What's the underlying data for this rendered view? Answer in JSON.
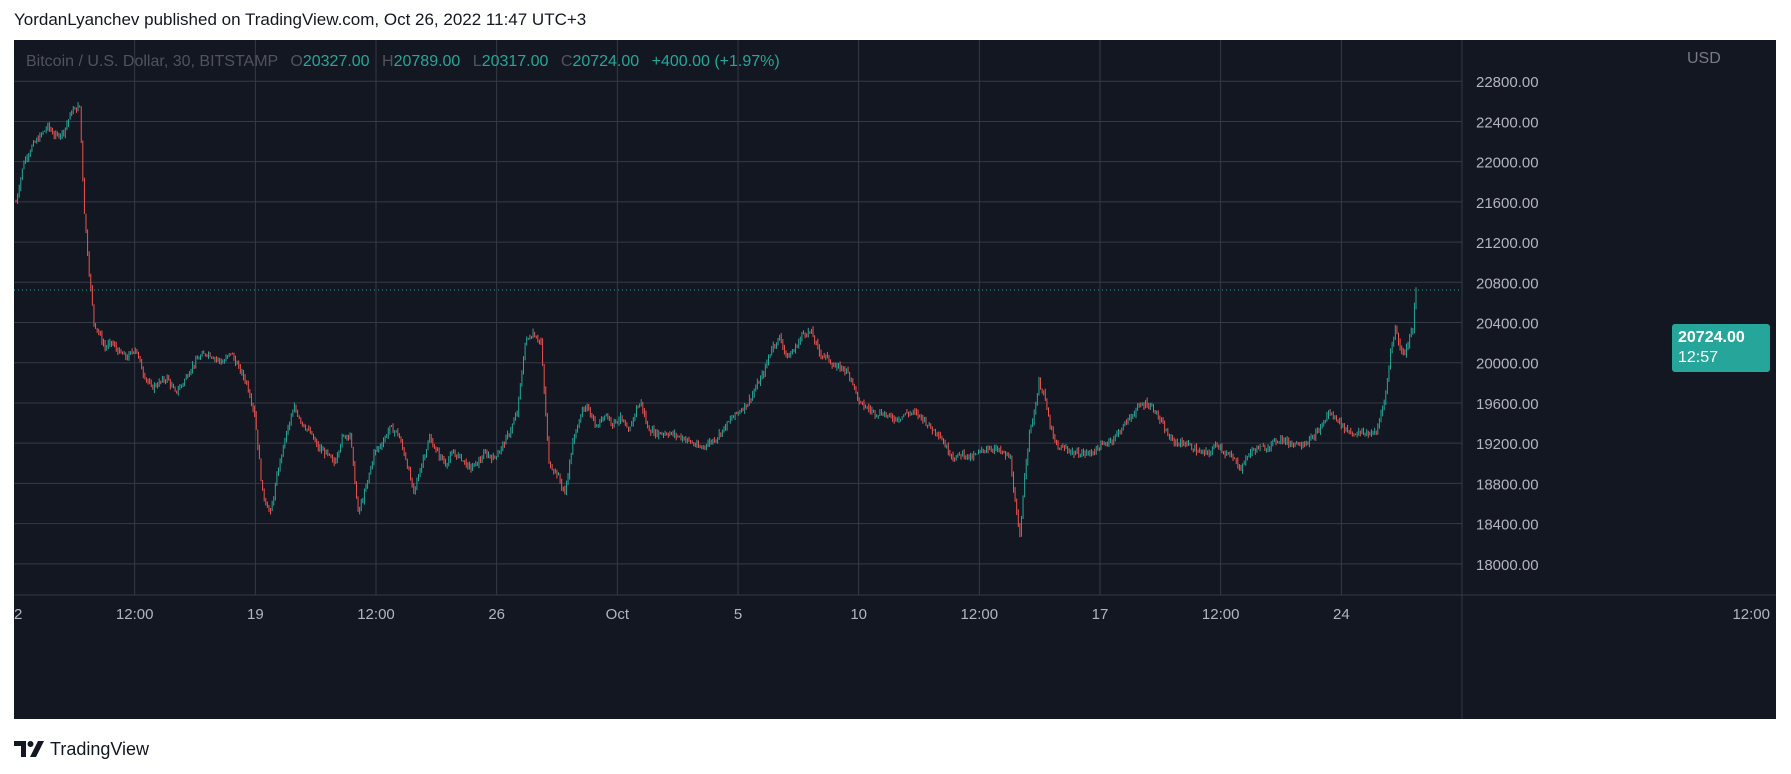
{
  "header": {
    "published_text": "YordanLyanchev published on TradingView.com, Oct 26, 2022 11:47 UTC+3"
  },
  "legend": {
    "symbol": "Bitcoin / U.S. Dollar, 30, BITSTAMP",
    "open_label": "O",
    "open": "20327.00",
    "high_label": "H",
    "high": "20789.00",
    "low_label": "L",
    "low": "20317.00",
    "close_label": "C",
    "close": "20724.00",
    "change": "+400.00 (+1.97%)"
  },
  "price_axis": {
    "currency": "USD",
    "last_price": "20724.00",
    "countdown": "12:57"
  },
  "footer": {
    "brand": "TradingView"
  },
  "colors": {
    "background": "#131722",
    "grid": "#363a45",
    "up": "#26a69a",
    "down": "#ef5350",
    "axis_text": "#b2b5be",
    "price_tag": "#26a69a"
  },
  "chart_data": {
    "type": "candlestick",
    "title": "Bitcoin / U.S. Dollar, 30, BITSTAMP",
    "xlabel": "",
    "ylabel": "USD",
    "x_tick_labels": [
      "2",
      "12:00",
      "19",
      "12:00",
      "26",
      "Oct",
      "5",
      "10",
      "12:00",
      "17",
      "12:00",
      "24",
      "12:00"
    ],
    "y_tick_labels": [
      "18000.00",
      "18400.00",
      "18800.00",
      "19200.00",
      "19600.00",
      "20000.00",
      "20400.00",
      "20800.00",
      "21200.00",
      "21600.00",
      "22000.00",
      "22400.00",
      "22800.00"
    ],
    "ylim": [
      17690,
      23210
    ],
    "grid": true,
    "last_price": 20724,
    "series": [
      {
        "name": "BTCUSD",
        "close_path": [
          [
            0,
            21600
          ],
          [
            5,
            22000
          ],
          [
            10,
            22150
          ],
          [
            15,
            22250
          ],
          [
            20,
            22350
          ],
          [
            25,
            22250
          ],
          [
            30,
            22300
          ],
          [
            35,
            22500
          ],
          [
            40,
            22550
          ],
          [
            43,
            21500
          ],
          [
            46,
            20900
          ],
          [
            49,
            20400
          ],
          [
            52,
            20300
          ],
          [
            56,
            20150
          ],
          [
            60,
            20200
          ],
          [
            65,
            20100
          ],
          [
            70,
            20050
          ],
          [
            75,
            20150
          ],
          [
            80,
            19900
          ],
          [
            85,
            19750
          ],
          [
            90,
            19800
          ],
          [
            95,
            19850
          ],
          [
            100,
            19700
          ],
          [
            105,
            19800
          ],
          [
            110,
            19950
          ],
          [
            115,
            20050
          ],
          [
            120,
            20100
          ],
          [
            125,
            20050
          ],
          [
            130,
            20000
          ],
          [
            135,
            20100
          ],
          [
            140,
            19950
          ],
          [
            145,
            19800
          ],
          [
            150,
            19500
          ],
          [
            155,
            18700
          ],
          [
            160,
            18500
          ],
          [
            165,
            18950
          ],
          [
            170,
            19300
          ],
          [
            175,
            19550
          ],
          [
            180,
            19400
          ],
          [
            185,
            19300
          ],
          [
            190,
            19150
          ],
          [
            195,
            19100
          ],
          [
            200,
            19000
          ],
          [
            205,
            19250
          ],
          [
            210,
            19300
          ],
          [
            215,
            18500
          ],
          [
            220,
            18750
          ],
          [
            225,
            19100
          ],
          [
            230,
            19200
          ],
          [
            235,
            19350
          ],
          [
            240,
            19300
          ],
          [
            245,
            19050
          ],
          [
            250,
            18700
          ],
          [
            255,
            19000
          ],
          [
            260,
            19250
          ],
          [
            265,
            19100
          ],
          [
            270,
            19000
          ],
          [
            275,
            19100
          ],
          [
            280,
            19050
          ],
          [
            285,
            18950
          ],
          [
            290,
            19000
          ],
          [
            295,
            19100
          ],
          [
            300,
            19050
          ],
          [
            305,
            19150
          ],
          [
            310,
            19300
          ],
          [
            315,
            19500
          ],
          [
            318,
            19900
          ],
          [
            320,
            20200
          ],
          [
            325,
            20300
          ],
          [
            330,
            20200
          ],
          [
            335,
            19000
          ],
          [
            340,
            18900
          ],
          [
            345,
            18700
          ],
          [
            350,
            19200
          ],
          [
            355,
            19500
          ],
          [
            360,
            19550
          ],
          [
            365,
            19350
          ],
          [
            370,
            19500
          ],
          [
            375,
            19400
          ],
          [
            380,
            19450
          ],
          [
            385,
            19300
          ],
          [
            390,
            19550
          ],
          [
            393,
            19600
          ],
          [
            397,
            19350
          ],
          [
            402,
            19300
          ],
          [
            410,
            19300
          ],
          [
            420,
            19250
          ],
          [
            430,
            19150
          ],
          [
            440,
            19250
          ],
          [
            450,
            19450
          ],
          [
            460,
            19600
          ],
          [
            465,
            19750
          ],
          [
            470,
            19900
          ],
          [
            475,
            20150
          ],
          [
            480,
            20250
          ],
          [
            485,
            20050
          ],
          [
            490,
            20150
          ],
          [
            495,
            20300
          ],
          [
            500,
            20300
          ],
          [
            505,
            20100
          ],
          [
            510,
            20050
          ],
          [
            515,
            19950
          ],
          [
            520,
            19950
          ],
          [
            525,
            19850
          ],
          [
            530,
            19600
          ],
          [
            535,
            19550
          ],
          [
            540,
            19500
          ],
          [
            545,
            19500
          ],
          [
            550,
            19450
          ],
          [
            555,
            19450
          ],
          [
            560,
            19500
          ],
          [
            565,
            19500
          ],
          [
            570,
            19450
          ],
          [
            575,
            19350
          ],
          [
            580,
            19300
          ],
          [
            585,
            19150
          ],
          [
            590,
            19050
          ],
          [
            595,
            19100
          ],
          [
            600,
            19050
          ],
          [
            605,
            19100
          ],
          [
            610,
            19150
          ],
          [
            615,
            19150
          ],
          [
            620,
            19100
          ],
          [
            625,
            19050
          ],
          [
            628,
            18600
          ],
          [
            631,
            18250
          ],
          [
            634,
            18900
          ],
          [
            637,
            19300
          ],
          [
            640,
            19500
          ],
          [
            643,
            19800
          ],
          [
            646,
            19700
          ],
          [
            649,
            19450
          ],
          [
            652,
            19250
          ],
          [
            655,
            19150
          ],
          [
            660,
            19150
          ],
          [
            665,
            19100
          ],
          [
            670,
            19100
          ],
          [
            675,
            19100
          ],
          [
            680,
            19150
          ],
          [
            685,
            19200
          ],
          [
            690,
            19250
          ],
          [
            695,
            19350
          ],
          [
            700,
            19450
          ],
          [
            705,
            19550
          ],
          [
            710,
            19600
          ],
          [
            715,
            19550
          ],
          [
            720,
            19400
          ],
          [
            725,
            19250
          ],
          [
            730,
            19200
          ],
          [
            735,
            19200
          ],
          [
            740,
            19150
          ],
          [
            745,
            19100
          ],
          [
            750,
            19100
          ],
          [
            755,
            19200
          ],
          [
            760,
            19100
          ],
          [
            765,
            19050
          ],
          [
            770,
            18950
          ],
          [
            775,
            19100
          ],
          [
            780,
            19150
          ],
          [
            785,
            19150
          ],
          [
            790,
            19200
          ],
          [
            795,
            19250
          ],
          [
            800,
            19200
          ],
          [
            805,
            19200
          ],
          [
            810,
            19200
          ],
          [
            815,
            19250
          ],
          [
            820,
            19350
          ],
          [
            825,
            19500
          ],
          [
            830,
            19450
          ],
          [
            835,
            19350
          ],
          [
            840,
            19300
          ],
          [
            845,
            19300
          ],
          [
            850,
            19300
          ],
          [
            855,
            19300
          ],
          [
            858,
            19500
          ],
          [
            861,
            19700
          ],
          [
            864,
            20100
          ],
          [
            867,
            20350
          ],
          [
            870,
            20150
          ],
          [
            873,
            20100
          ],
          [
            876,
            20250
          ],
          [
            878,
            20350
          ],
          [
            880,
            20724
          ]
        ]
      }
    ]
  }
}
